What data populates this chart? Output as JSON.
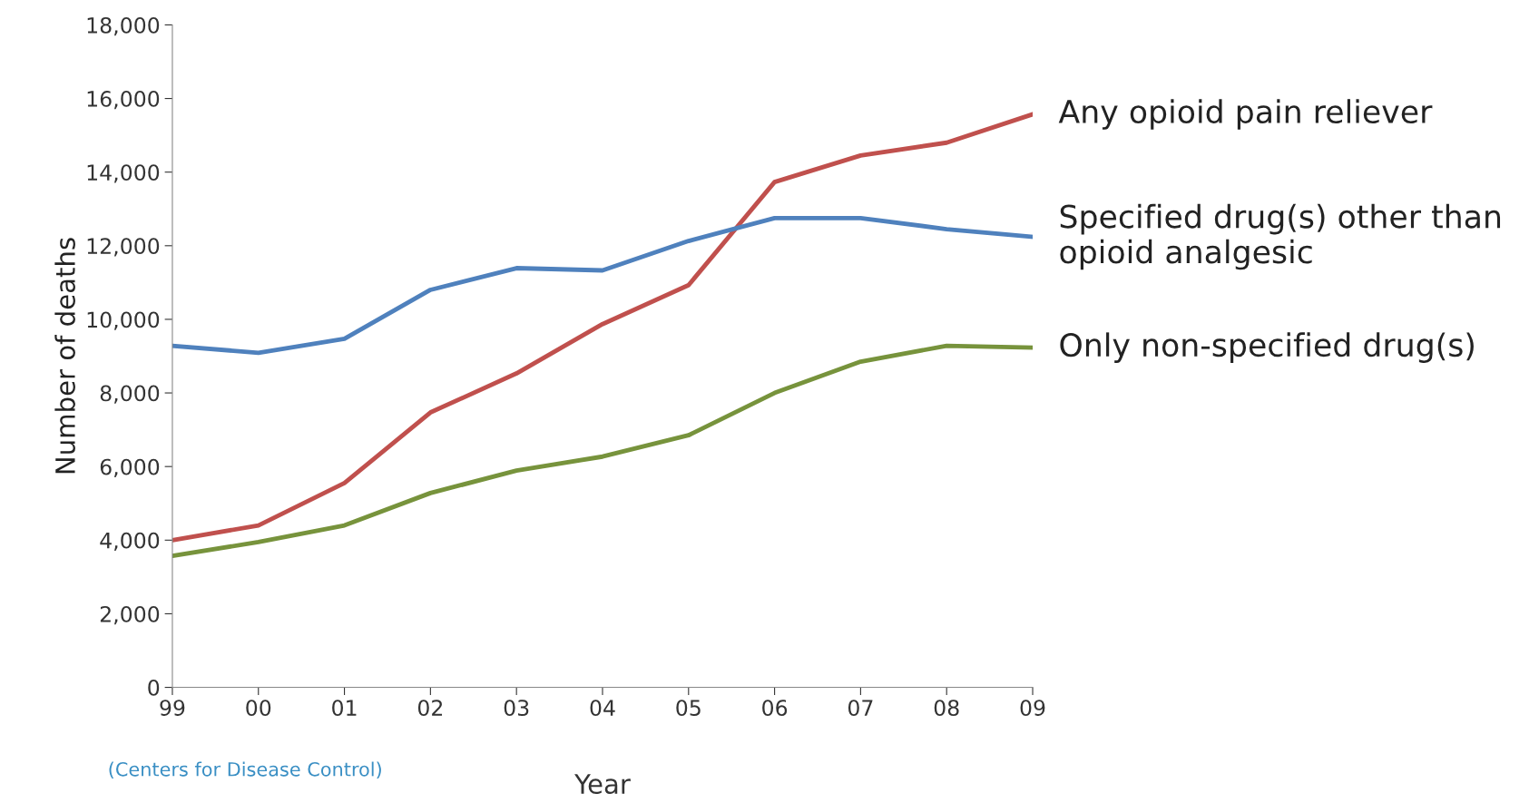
{
  "chart_data": {
    "type": "line",
    "xlabel": "Year",
    "ylabel": "Number of deaths",
    "categories": [
      "99",
      "00",
      "01",
      "02",
      "03",
      "04",
      "05",
      "06",
      "07",
      "08",
      "09"
    ],
    "ylim": [
      0,
      18000
    ],
    "yticks": [
      {
        "value": 0,
        "label": "0"
      },
      {
        "value": 2000,
        "label": "2,000"
      },
      {
        "value": 4000,
        "label": "4,000"
      },
      {
        "value": 6000,
        "label": "6,000"
      },
      {
        "value": 8000,
        "label": "8,000"
      },
      {
        "value": 10000,
        "label": "10,000"
      },
      {
        "value": 12000,
        "label": "12,000"
      },
      {
        "value": 14000,
        "label": "14,000"
      },
      {
        "value": 16000,
        "label": "16,000"
      },
      {
        "value": 18000,
        "label": "18,000"
      }
    ],
    "grid": false,
    "legend": false,
    "marker": "none",
    "line_style": "solid",
    "annotations": [
      "(Centers for Disease Control)"
    ],
    "series": [
      {
        "name": "Any opioid pain reliever",
        "color": "#c0504d",
        "values": [
          4000,
          4400,
          5550,
          7470,
          8530,
          9870,
          10930,
          13730,
          14450,
          14800,
          15570
        ]
      },
      {
        "name": "Specified drug(s) other than opioid analgesic",
        "color": "#4f81bd",
        "values": [
          9280,
          9090,
          9470,
          10800,
          11390,
          11330,
          12130,
          12750,
          12750,
          12450,
          12240
        ]
      },
      {
        "name": "Only non-specified drug(s)",
        "color": "#77933c",
        "values": [
          3570,
          3950,
          4400,
          5280,
          5890,
          6270,
          6850,
          8000,
          8850,
          9280,
          9230
        ]
      }
    ]
  }
}
